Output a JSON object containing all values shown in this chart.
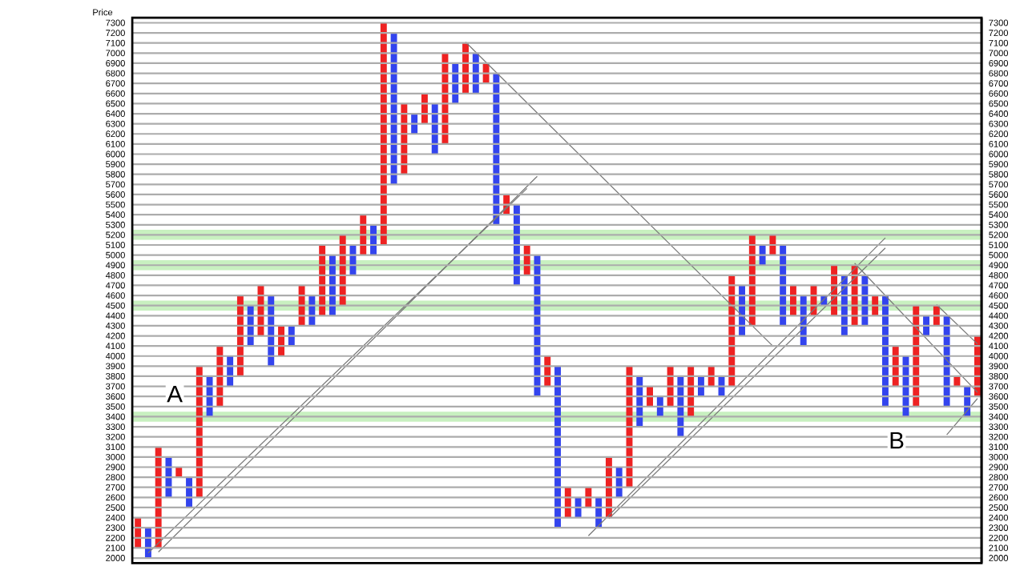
{
  "chart_data": {
    "type": "bar",
    "ylabel": "Price",
    "categories": [
      null,
      null,
      null,
      null,
      null,
      null,
      null,
      null,
      null,
      null,
      null,
      null,
      null,
      null,
      null,
      null,
      null,
      null,
      null,
      null,
      null,
      null,
      null,
      null,
      null,
      null,
      null,
      null,
      null,
      null,
      null,
      null,
      null,
      null,
      null,
      null,
      null,
      null,
      null,
      null,
      null,
      null,
      null,
      null,
      null,
      null,
      null,
      null,
      null,
      null,
      null,
      null,
      null,
      null,
      null,
      null,
      null,
      null,
      null,
      null,
      null,
      null,
      null,
      null,
      null,
      null,
      null,
      null,
      null,
      null,
      null,
      null,
      null,
      null,
      null,
      null,
      null,
      null,
      null,
      null,
      null,
      null,
      null
    ],
    "ylim": [
      1950,
      7350
    ],
    "y2lim": [
      1950,
      7350
    ],
    "yticks": [
      2000,
      2100,
      2200,
      2300,
      2400,
      2500,
      2600,
      2700,
      2800,
      2900,
      3000,
      3100,
      3200,
      3300,
      3400,
      3500,
      3600,
      3700,
      3800,
      3900,
      4000,
      4100,
      4200,
      4300,
      4400,
      4500,
      4600,
      4700,
      4800,
      4900,
      5000,
      5100,
      5200,
      5300,
      5400,
      5500,
      5600,
      5700,
      5800,
      5900,
      6000,
      6100,
      6200,
      6300,
      6400,
      6500,
      6600,
      6700,
      6800,
      6900,
      7000,
      7100,
      7200,
      7300
    ],
    "y2ticks": [
      2000,
      2100,
      2200,
      2300,
      2400,
      2500,
      2600,
      2700,
      2800,
      2900,
      3000,
      3100,
      3200,
      3300,
      3400,
      3500,
      3600,
      3700,
      3800,
      3900,
      4000,
      4100,
      4200,
      4300,
      4400,
      4500,
      4600,
      4700,
      4800,
      4900,
      5000,
      5100,
      5200,
      5300,
      5400,
      5500,
      5600,
      5700,
      5800,
      5900,
      6000,
      6100,
      6200,
      6300,
      6400,
      6500,
      6600,
      6700,
      6800,
      6900,
      7000,
      7100,
      7200,
      7300
    ],
    "tick_labels": "y",
    "grid": "y",
    "series": [
      {
        "color": "#ee2222",
        "base": [
          2100,
          null,
          2100,
          null,
          2800,
          null,
          2600,
          null,
          3500,
          null,
          3800,
          null,
          4200,
          null,
          4000,
          null,
          4300,
          null,
          4400,
          null,
          4500,
          null,
          5000,
          null,
          5100,
          null,
          5800,
          null,
          6300,
          null,
          6100,
          null,
          6600,
          null,
          6700,
          null,
          5400,
          null,
          4800,
          null,
          3700,
          null,
          2400,
          null,
          2500,
          null,
          2400,
          null,
          2700,
          null,
          3500,
          null,
          3500,
          null,
          3400,
          null,
          3700,
          null,
          3700,
          null,
          4300,
          null,
          5000,
          null,
          4400,
          null,
          4400,
          null,
          4400,
          null,
          4300,
          null,
          4400,
          null,
          3700,
          null,
          3500,
          null,
          4300,
          null,
          3700,
          null,
          3600
        ],
        "values": [
          300,
          null,
          1000,
          null,
          100,
          null,
          1300,
          null,
          600,
          null,
          800,
          null,
          500,
          null,
          300,
          null,
          400,
          null,
          700,
          null,
          700,
          null,
          400,
          null,
          2200,
          null,
          700,
          null,
          300,
          null,
          900,
          null,
          500,
          null,
          200,
          null,
          200,
          null,
          300,
          null,
          300,
          null,
          300,
          null,
          200,
          null,
          600,
          null,
          1200,
          null,
          200,
          null,
          400,
          null,
          500,
          null,
          200,
          null,
          1100,
          null,
          900,
          null,
          200,
          null,
          300,
          null,
          300,
          null,
          500,
          null,
          600,
          null,
          200,
          null,
          400,
          null,
          1000,
          null,
          200,
          null,
          100,
          null,
          600
        ]
      },
      {
        "color": "#3344ee",
        "base": [
          null,
          2000,
          null,
          2600,
          null,
          2500,
          null,
          3400,
          null,
          3700,
          null,
          4100,
          null,
          3900,
          null,
          4100,
          null,
          4300,
          null,
          4400,
          null,
          4800,
          null,
          5000,
          null,
          5700,
          null,
          6200,
          null,
          6000,
          null,
          6500,
          null,
          6600,
          null,
          5300,
          null,
          4700,
          null,
          3600,
          null,
          2300,
          null,
          2400,
          null,
          2300,
          null,
          2600,
          null,
          3300,
          null,
          3400,
          null,
          3200,
          null,
          3600,
          null,
          3600,
          null,
          4200,
          null,
          4900,
          null,
          4300,
          null,
          4100,
          null,
          4500,
          null,
          4200,
          null,
          4300,
          null,
          3500,
          null,
          3400,
          null,
          4200,
          null,
          3500,
          null,
          3400,
          null
        ],
        "values": [
          null,
          300,
          null,
          400,
          null,
          300,
          null,
          400,
          null,
          300,
          null,
          400,
          null,
          700,
          null,
          200,
          null,
          300,
          null,
          600,
          null,
          300,
          null,
          300,
          null,
          1500,
          null,
          200,
          null,
          500,
          null,
          400,
          null,
          400,
          null,
          1500,
          null,
          800,
          null,
          1400,
          null,
          1600,
          null,
          200,
          null,
          300,
          null,
          300,
          null,
          500,
          null,
          200,
          null,
          600,
          null,
          200,
          null,
          200,
          null,
          500,
          null,
          200,
          null,
          800,
          null,
          500,
          null,
          100,
          null,
          600,
          null,
          500,
          null,
          1100,
          null,
          600,
          null,
          200,
          null,
          900,
          null,
          300,
          null
        ]
      },
      {
        "type": "line",
        "line_style": "solid",
        "color": "#777777",
        "values": [
          null,
          2050,
          null,
          null,
          null,
          null,
          null,
          null,
          null,
          null,
          null,
          null,
          null,
          null,
          null,
          null,
          null,
          null,
          null,
          null,
          null,
          null,
          null,
          null,
          null,
          null,
          null,
          null,
          null,
          null,
          null,
          null,
          null,
          null,
          null,
          null,
          null,
          null,
          5660,
          null,
          null,
          null,
          null,
          null,
          null,
          null,
          null,
          null,
          null,
          null,
          null,
          null,
          null,
          null,
          null,
          null,
          null,
          null,
          null,
          null,
          null,
          null,
          null,
          null,
          null,
          null,
          null,
          null,
          null,
          null,
          null,
          null,
          null,
          null,
          null,
          null,
          null,
          null,
          null,
          null,
          null,
          null,
          null
        ]
      },
      {
        "type": "line",
        "line_style": "solid",
        "color": "#777777",
        "values": [
          null,
          null,
          2060,
          null,
          null,
          null,
          null,
          null,
          null,
          null,
          null,
          null,
          null,
          null,
          null,
          null,
          null,
          null,
          null,
          null,
          null,
          null,
          null,
          null,
          null,
          null,
          null,
          null,
          null,
          null,
          null,
          null,
          null,
          null,
          null,
          null,
          null,
          null,
          null,
          5780,
          null,
          null,
          null,
          null,
          null,
          null,
          null,
          null,
          null,
          null,
          null,
          null,
          null,
          null,
          null,
          null,
          null,
          null,
          null,
          null,
          null,
          null,
          null,
          null,
          null,
          null,
          null,
          null,
          null,
          null,
          null,
          null,
          null,
          null,
          null,
          null,
          null,
          null,
          null,
          null,
          null,
          null,
          null
        ]
      },
      {
        "type": "line",
        "line_style": "solid",
        "color": "#777777",
        "values": [
          null,
          null,
          null,
          null,
          null,
          null,
          null,
          null,
          null,
          null,
          null,
          null,
          null,
          null,
          null,
          null,
          null,
          null,
          null,
          null,
          null,
          null,
          null,
          null,
          null,
          null,
          null,
          null,
          null,
          null,
          null,
          null,
          7110,
          null,
          null,
          null,
          null,
          null,
          null,
          null,
          null,
          null,
          null,
          null,
          null,
          null,
          null,
          null,
          null,
          null,
          null,
          null,
          null,
          null,
          null,
          null,
          null,
          null,
          null,
          null,
          null,
          null,
          4100,
          null,
          null,
          null,
          null,
          null,
          null,
          null,
          null,
          null,
          null,
          null,
          null,
          null,
          null,
          null,
          null,
          null,
          null,
          null,
          null
        ]
      },
      {
        "type": "line",
        "line_style": "solid",
        "color": "#777777",
        "values": [
          null,
          null,
          null,
          null,
          null,
          null,
          null,
          null,
          null,
          null,
          null,
          null,
          null,
          null,
          null,
          null,
          null,
          null,
          null,
          null,
          null,
          null,
          null,
          null,
          null,
          null,
          null,
          null,
          null,
          null,
          null,
          null,
          null,
          null,
          null,
          null,
          null,
          null,
          null,
          null,
          null,
          null,
          null,
          null,
          2220,
          null,
          null,
          null,
          null,
          null,
          null,
          null,
          null,
          null,
          null,
          null,
          null,
          null,
          null,
          null,
          null,
          null,
          null,
          null,
          null,
          null,
          null,
          null,
          null,
          null,
          null,
          null,
          null,
          5170,
          null,
          null,
          null,
          null,
          null,
          null,
          null,
          null,
          null
        ]
      },
      {
        "type": "line",
        "line_style": "solid",
        "color": "#777777",
        "values": [
          null,
          null,
          null,
          null,
          null,
          null,
          null,
          null,
          null,
          null,
          null,
          null,
          null,
          null,
          null,
          null,
          null,
          null,
          null,
          null,
          null,
          null,
          null,
          null,
          null,
          null,
          null,
          null,
          null,
          null,
          null,
          null,
          null,
          null,
          null,
          null,
          null,
          null,
          null,
          null,
          null,
          null,
          null,
          null,
          null,
          null,
          2390,
          null,
          null,
          null,
          null,
          null,
          null,
          null,
          null,
          null,
          null,
          null,
          null,
          null,
          null,
          null,
          null,
          null,
          null,
          null,
          null,
          null,
          null,
          null,
          null,
          null,
          null,
          5070,
          null,
          null,
          null,
          null,
          null,
          null,
          null,
          null,
          null
        ]
      },
      {
        "type": "line",
        "line_style": "solid",
        "color": "#777777",
        "values": [
          null,
          null,
          null,
          null,
          null,
          null,
          null,
          null,
          null,
          null,
          null,
          null,
          null,
          null,
          null,
          null,
          null,
          null,
          null,
          null,
          null,
          null,
          null,
          null,
          null,
          null,
          null,
          null,
          null,
          null,
          null,
          null,
          null,
          null,
          null,
          null,
          null,
          null,
          null,
          null,
          null,
          null,
          null,
          null,
          null,
          null,
          null,
          null,
          null,
          null,
          null,
          null,
          null,
          null,
          null,
          null,
          null,
          null,
          null,
          null,
          null,
          null,
          null,
          null,
          null,
          null,
          null,
          null,
          null,
          null,
          4920,
          null,
          null,
          null,
          null,
          null,
          null,
          null,
          null,
          null,
          null,
          null,
          3640
        ]
      },
      {
        "type": "line",
        "line_style": "solid",
        "color": "#777777",
        "values": [
          null,
          null,
          null,
          null,
          null,
          null,
          null,
          null,
          null,
          null,
          null,
          null,
          null,
          null,
          null,
          null,
          null,
          null,
          null,
          null,
          null,
          null,
          null,
          null,
          null,
          null,
          null,
          null,
          null,
          null,
          null,
          null,
          null,
          null,
          null,
          null,
          null,
          null,
          null,
          null,
          null,
          null,
          null,
          null,
          null,
          null,
          null,
          null,
          null,
          null,
          null,
          null,
          null,
          null,
          null,
          null,
          null,
          null,
          null,
          null,
          null,
          null,
          null,
          null,
          null,
          null,
          null,
          null,
          null,
          null,
          null,
          null,
          null,
          null,
          null,
          null,
          null,
          null,
          null,
          3220,
          null,
          null,
          3580
        ]
      },
      {
        "type": "line",
        "line_style": "solid",
        "color": "#777777",
        "values": [
          null,
          null,
          null,
          null,
          null,
          null,
          null,
          null,
          null,
          null,
          null,
          null,
          null,
          null,
          null,
          null,
          null,
          null,
          null,
          null,
          null,
          null,
          null,
          null,
          null,
          null,
          null,
          null,
          null,
          null,
          null,
          null,
          null,
          null,
          null,
          null,
          null,
          null,
          null,
          null,
          null,
          null,
          null,
          null,
          null,
          null,
          null,
          null,
          null,
          null,
          null,
          null,
          null,
          null,
          null,
          null,
          null,
          null,
          null,
          null,
          null,
          null,
          null,
          null,
          null,
          null,
          null,
          null,
          null,
          null,
          null,
          null,
          null,
          null,
          null,
          null,
          null,
          null,
          4510,
          null,
          null,
          null,
          4120
        ]
      }
    ],
    "bands": [
      {
        "axis": "y",
        "from": 3350,
        "to": 3450,
        "color": "#c8f0c0"
      },
      {
        "axis": "y",
        "from": 4450,
        "to": 4550,
        "color": "#c8f0c0"
      },
      {
        "axis": "y",
        "from": 4850,
        "to": 4950,
        "color": "#c8f0c0"
      },
      {
        "axis": "y",
        "from": 5150,
        "to": 5250,
        "color": "#c8f0c0"
      }
    ],
    "annotations": [
      "A",
      "B"
    ]
  }
}
